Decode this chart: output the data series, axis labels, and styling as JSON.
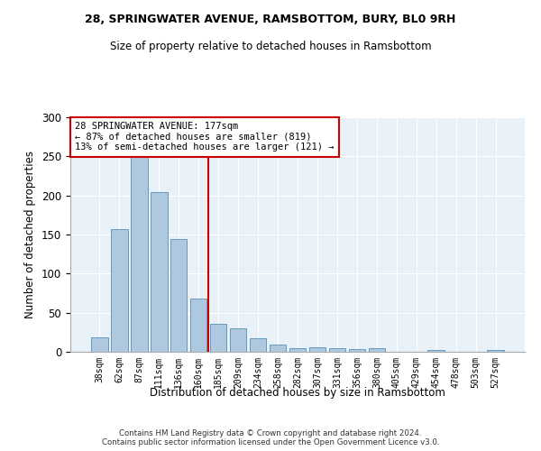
{
  "title_line1": "28, SPRINGWATER AVENUE, RAMSBOTTOM, BURY, BL0 9RH",
  "title_line2": "Size of property relative to detached houses in Ramsbottom",
  "xlabel": "Distribution of detached houses by size in Ramsbottom",
  "ylabel": "Number of detached properties",
  "footer_line1": "Contains HM Land Registry data © Crown copyright and database right 2024.",
  "footer_line2": "Contains public sector information licensed under the Open Government Licence v3.0.",
  "annotation_line1": "28 SPRINGWATER AVENUE: 177sqm",
  "annotation_line2": "← 87% of detached houses are smaller (819)",
  "annotation_line3": "13% of semi-detached houses are larger (121) →",
  "bar_labels": [
    "38sqm",
    "62sqm",
    "87sqm",
    "111sqm",
    "136sqm",
    "160sqm",
    "185sqm",
    "209sqm",
    "234sqm",
    "258sqm",
    "282sqm",
    "307sqm",
    "331sqm",
    "356sqm",
    "380sqm",
    "405sqm",
    "429sqm",
    "454sqm",
    "478sqm",
    "503sqm",
    "527sqm"
  ],
  "bar_values": [
    18,
    157,
    250,
    204,
    144,
    68,
    36,
    30,
    17,
    9,
    5,
    6,
    5,
    4,
    5,
    0,
    0,
    2,
    0,
    0,
    2
  ],
  "bar_color": "#aec8e0",
  "bar_edge_color": "#6699bb",
  "vline_color": "#cc0000",
  "annotation_box_color": "#cc0000",
  "background_color": "#e8f0f8",
  "ylim": [
    0,
    300
  ],
  "yticks": [
    0,
    50,
    100,
    150,
    200,
    250,
    300
  ],
  "fig_width": 6.0,
  "fig_height": 5.0
}
